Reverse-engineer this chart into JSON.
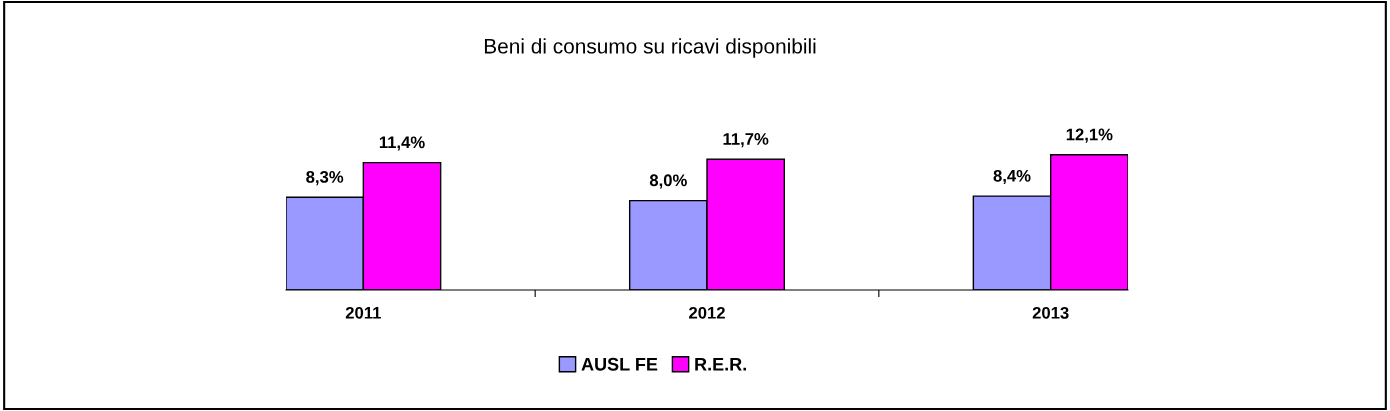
{
  "chart_data": {
    "type": "bar",
    "title": "Beni di consumo su ricavi disponibili",
    "categories": [
      "2011",
      "2012",
      "2013"
    ],
    "series": [
      {
        "name": "AUSL FE",
        "color": "#9999ff",
        "values": [
          8.3,
          8.0,
          8.4
        ],
        "value_labels": [
          "8,3%",
          "8,0%",
          "8,4%"
        ]
      },
      {
        "name": "R.E.R.",
        "color": "#ff00ff",
        "values": [
          11.4,
          11.7,
          12.1
        ],
        "value_labels": [
          "11,4%",
          "11,7%",
          "12,1%"
        ]
      }
    ],
    "grid": false,
    "legend": "bottom",
    "tick_labels": "x"
  }
}
